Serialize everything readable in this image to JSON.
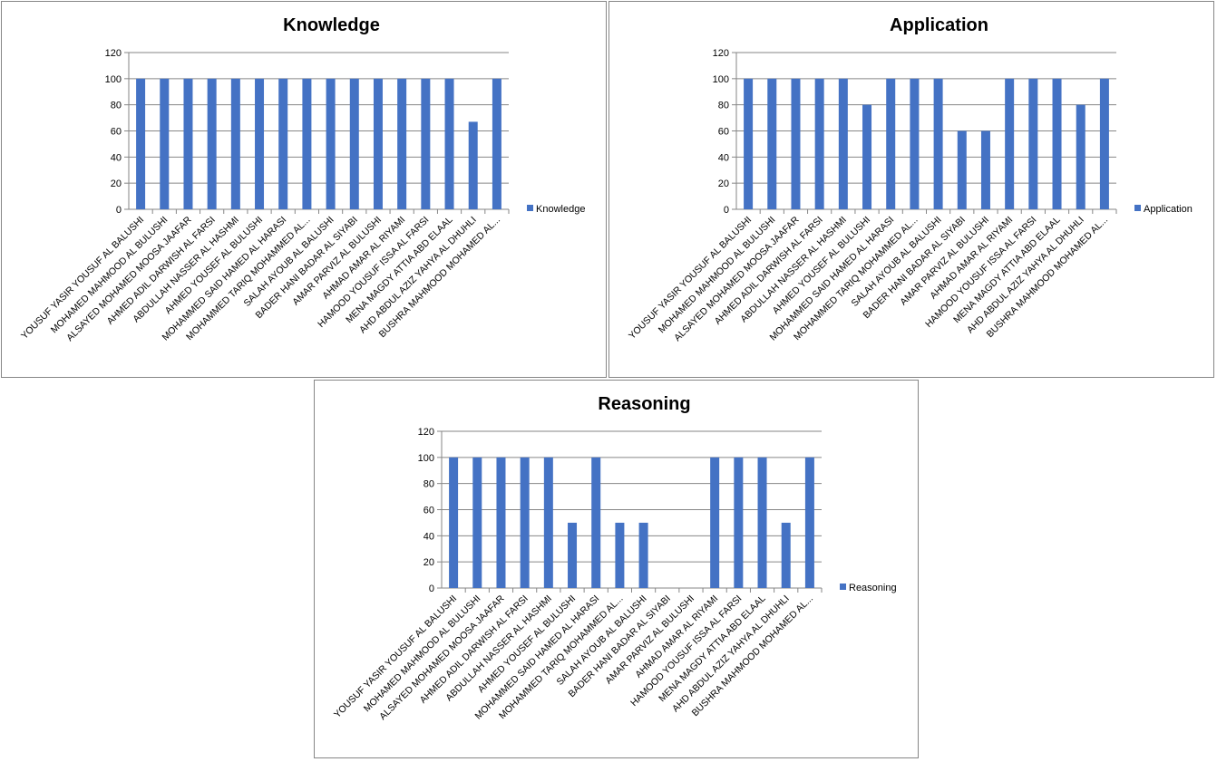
{
  "chart_data": [
    {
      "type": "bar",
      "title": "Knowledge",
      "xlabel": "",
      "ylabel": "",
      "ylim": [
        0,
        120
      ],
      "yticks": [
        0,
        20,
        40,
        60,
        80,
        100,
        120
      ],
      "grid": true,
      "legend": "right",
      "categories": [
        "YOUSUF  YASIR YOUSUF AL BALUSHI",
        "MOHAMED MAHMOOD AL BULUSHI",
        "ALSAYED MOHAMED   MOOSA JAAFAR",
        "AHMED ADIL DARWISH  AL FARSI",
        "ABDULLAH NASSER AL HASHMI",
        "AHMED YOUSEF   AL BULUSHI",
        "MOHAMMED SAID HAMED AL HARASI",
        "MOHAMMED TARIQ MOHAMMED AL...",
        "SALAH AYOUB  AL BALUSHI",
        "BADER HANI BADAR  AL SIYABI",
        "AMAR PARVIZ  AL BULUSHI",
        "AHMAD AMAR  AL RIYAMI",
        "HAMOOD YOUSUF ISSA AL FARSI",
        "MENA MAGDY ATTIA   ABD  ELAAL",
        "AHD ABDUL  AZIZ  YAHYA  AL DHUHLI",
        "BUSHRA MAHMOOD MOHAMED AL..."
      ],
      "series": [
        {
          "name": "Knowledge",
          "color": "#4472C4",
          "values": [
            100,
            100,
            100,
            100,
            100,
            100,
            100,
            100,
            100,
            100,
            100,
            100,
            100,
            100,
            67,
            100
          ]
        }
      ]
    },
    {
      "type": "bar",
      "title": "Application",
      "xlabel": "",
      "ylabel": "",
      "ylim": [
        0,
        120
      ],
      "yticks": [
        0,
        20,
        40,
        60,
        80,
        100,
        120
      ],
      "grid": true,
      "legend": "right",
      "categories": [
        "YOUSUF  YASIR YOUSUF AL BALUSHI",
        "MOHAMED MAHMOOD AL BULUSHI",
        "ALSAYED MOHAMED   MOOSA JAAFAR",
        "AHMED ADIL DARWISH  AL FARSI",
        "ABDULLAH NASSER AL HASHMI",
        "AHMED YOUSEF   AL BULUSHI",
        "MOHAMMED SAID HAMED AL HARASI",
        "MOHAMMED TARIQ MOHAMMED AL...",
        "SALAH AYOUB  AL BALUSHI",
        "BADER HANI BADAR  AL SIYABI",
        "AMAR PARVIZ  AL BULUSHI",
        "AHMAD AMAR  AL RIYAMI",
        "HAMOOD YOUSUF ISSA AL FARSI",
        "MENA MAGDY ATTIA   ABD  ELAAL",
        "AHD ABDUL  AZIZ  YAHYA  AL DHUHLI",
        "BUSHRA MAHMOOD MOHAMED AL..."
      ],
      "series": [
        {
          "name": "Application",
          "color": "#4472C4",
          "values": [
            100,
            100,
            100,
            100,
            100,
            80,
            100,
            100,
            100,
            60,
            60,
            100,
            100,
            100,
            80,
            100
          ]
        }
      ]
    },
    {
      "type": "bar",
      "title": "Reasoning",
      "xlabel": "",
      "ylabel": "",
      "ylim": [
        0,
        120
      ],
      "yticks": [
        0,
        20,
        40,
        60,
        80,
        100,
        120
      ],
      "grid": true,
      "legend": "right",
      "categories": [
        "YOUSUF  YASIR YOUSUF AL BALUSHI",
        "MOHAMED MAHMOOD AL BULUSHI",
        "ALSAYED MOHAMED   MOOSA JAAFAR",
        "AHMED ADIL DARWISH  AL FARSI",
        "ABDULLAH NASSER AL HASHMI",
        "AHMED YOUSEF   AL BULUSHI",
        "MOHAMMED SAID HAMED AL HARASI",
        "MOHAMMED TARIQ MOHAMMED AL...",
        "SALAH AYOUB  AL BALUSHI",
        "BADER HANI BADAR  AL SIYABI",
        "AMAR PARVIZ  AL BULUSHI",
        "AHMAD AMAR  AL RIYAMI",
        "HAMOOD YOUSUF ISSA AL FARSI",
        "MENA MAGDY ATTIA   ABD  ELAAL",
        "AHD ABDUL  AZIZ  YAHYA  AL DHUHLI",
        "BUSHRA MAHMOOD MOHAMED AL..."
      ],
      "series": [
        {
          "name": "Reasoning",
          "color": "#4472C4",
          "values": [
            100,
            100,
            100,
            100,
            100,
            50,
            100,
            50,
            50,
            0,
            0,
            100,
            100,
            100,
            50,
            100
          ]
        }
      ]
    }
  ]
}
